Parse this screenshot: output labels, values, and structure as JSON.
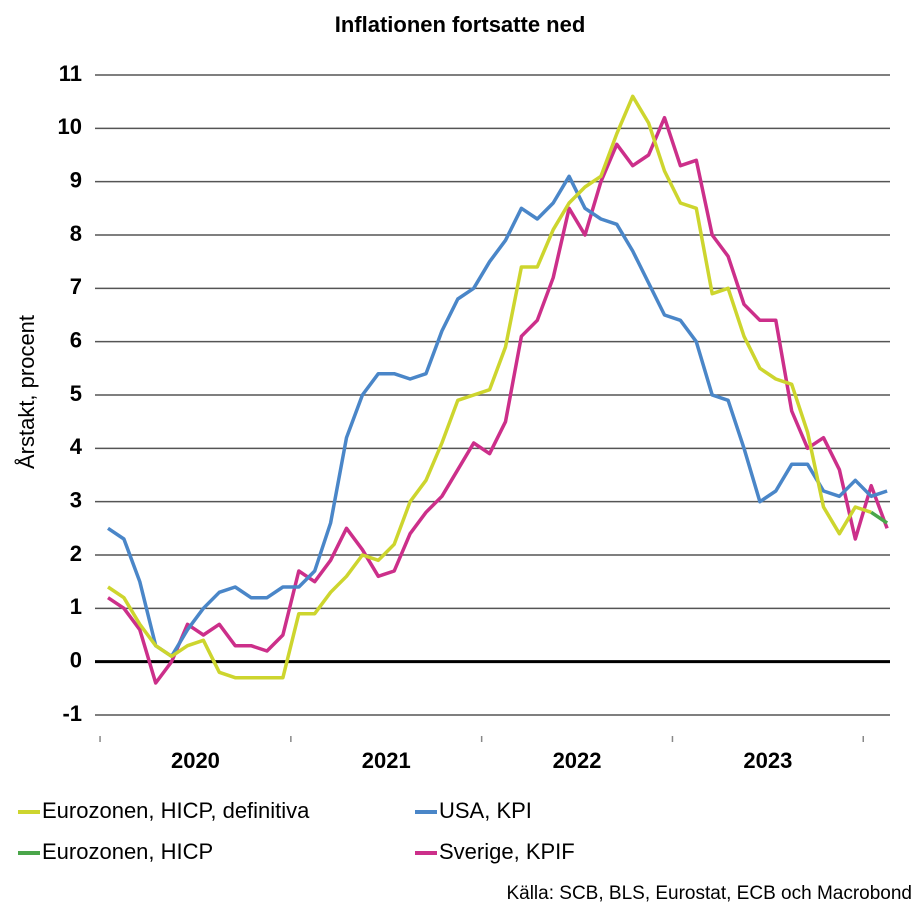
{
  "chart_data": {
    "type": "line",
    "title": "Inflationen fortsatte ned",
    "y_label": "Årstakt, procent",
    "source": "Källa: SCB, BLS, Eurostat, ECB och Macrobond",
    "categories": [
      null,
      null,
      null,
      null,
      null,
      null,
      "2020",
      null,
      null,
      null,
      null,
      null,
      null,
      null,
      null,
      null,
      null,
      null,
      "2021",
      null,
      null,
      null,
      null,
      null,
      null,
      null,
      null,
      null,
      null,
      null,
      "2022",
      null,
      null,
      null,
      null,
      null,
      null,
      null,
      null,
      null,
      null,
      null,
      "2023",
      null,
      null,
      null,
      null,
      null,
      null,
      null
    ],
    "series": [
      {
        "name": "Eurozonen, HICP, definitiva",
        "color": "#cdd52e",
        "values": [
          1.4,
          1.2,
          0.7,
          0.3,
          0.1,
          0.3,
          0.4,
          -0.2,
          -0.3,
          -0.3,
          -0.3,
          -0.3,
          0.9,
          0.9,
          1.3,
          1.6,
          2.0,
          1.9,
          2.2,
          3.0,
          3.4,
          4.1,
          4.9,
          5.0,
          5.1,
          5.9,
          7.4,
          7.4,
          8.1,
          8.6,
          8.9,
          9.1,
          9.9,
          10.6,
          10.1,
          9.2,
          8.6,
          8.5,
          6.9,
          7.0,
          6.1,
          5.5,
          5.3,
          5.2,
          4.3,
          2.9,
          2.4,
          2.9,
          2.8,
          null
        ]
      },
      {
        "name": "USA, KPI",
        "color": "#4a86c8",
        "values": [
          2.5,
          2.3,
          1.5,
          0.3,
          0.1,
          0.6,
          1.0,
          1.3,
          1.4,
          1.2,
          1.2,
          1.4,
          1.4,
          1.7,
          2.6,
          4.2,
          5.0,
          5.4,
          5.4,
          5.3,
          5.4,
          6.2,
          6.8,
          7.0,
          7.5,
          7.9,
          8.5,
          8.3,
          8.6,
          9.1,
          8.5,
          8.3,
          8.2,
          7.7,
          7.1,
          6.5,
          6.4,
          6.0,
          5.0,
          4.9,
          4.0,
          3.0,
          3.2,
          3.7,
          3.7,
          3.2,
          3.1,
          3.4,
          3.1,
          3.2
        ]
      },
      {
        "name": "Eurozonen, HICP",
        "color": "#4aa64a",
        "values": [
          null,
          null,
          null,
          null,
          null,
          null,
          null,
          null,
          null,
          null,
          null,
          null,
          null,
          null,
          null,
          null,
          null,
          null,
          null,
          null,
          null,
          null,
          null,
          null,
          null,
          null,
          null,
          null,
          null,
          null,
          null,
          null,
          null,
          null,
          null,
          null,
          null,
          null,
          null,
          null,
          null,
          null,
          null,
          null,
          null,
          null,
          null,
          null,
          2.8,
          2.6
        ]
      },
      {
        "name": "Sverige, KPIF",
        "color": "#cc2f8a",
        "values": [
          1.2,
          1.0,
          0.6,
          -0.4,
          0.0,
          0.7,
          0.5,
          0.7,
          0.3,
          0.3,
          0.2,
          0.5,
          1.7,
          1.5,
          1.9,
          2.5,
          2.1,
          1.6,
          1.7,
          2.4,
          2.8,
          3.1,
          3.6,
          4.1,
          3.9,
          4.5,
          6.1,
          6.4,
          7.2,
          8.5,
          8.0,
          9.0,
          9.7,
          9.3,
          9.5,
          10.2,
          9.3,
          9.4,
          8.0,
          7.6,
          6.7,
          6.4,
          6.4,
          4.7,
          4.0,
          4.2,
          3.6,
          2.3,
          3.3,
          2.5
        ]
      }
    ],
    "ylim": [
      -1,
      11
    ],
    "yticks": [
      -1,
      0,
      1,
      2,
      3,
      4,
      5,
      6,
      7,
      8,
      9,
      10,
      11
    ],
    "grid": true
  }
}
